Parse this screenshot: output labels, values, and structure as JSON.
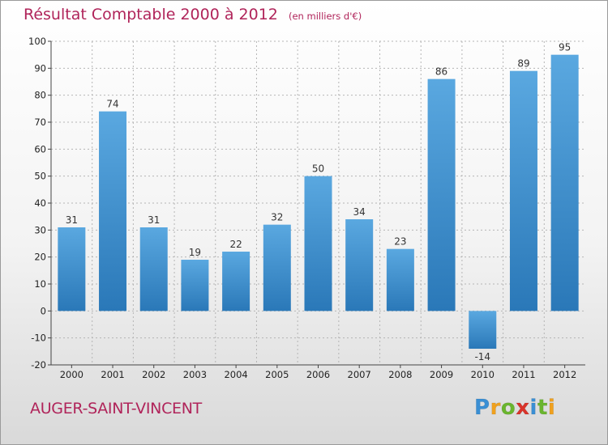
{
  "header": {
    "title": "Résultat Comptable 2000 à 2012",
    "unit": "(en milliers d'€)"
  },
  "footer": {
    "commune": "AUGER-SAINT-VINCENT"
  },
  "logo": {
    "text": "Proxiti",
    "letters": [
      {
        "ch": "P",
        "color": "#3a8fd4"
      },
      {
        "ch": "r",
        "color": "#f0a11e"
      },
      {
        "ch": "o",
        "color": "#6ab52e"
      },
      {
        "ch": "x",
        "color": "#d9342b"
      },
      {
        "ch": "i",
        "color": "#3a8fd4"
      },
      {
        "ch": "t",
        "color": "#6ab52e"
      },
      {
        "ch": "i",
        "color": "#f0a11e"
      }
    ]
  },
  "colors": {
    "title": "#b0245a",
    "bar_top": "#5aa8e0",
    "bar_bottom": "#2a78b8",
    "grid": "#b5b5b5"
  },
  "chart_data": {
    "type": "bar",
    "title": "Résultat Comptable 2000 à 2012",
    "unit": "(en milliers d'€)",
    "categories": [
      "2000",
      "2001",
      "2002",
      "2003",
      "2004",
      "2005",
      "2006",
      "2007",
      "2008",
      "2009",
      "2010",
      "2011",
      "2012"
    ],
    "values": [
      31,
      74,
      31,
      19,
      22,
      32,
      50,
      34,
      23,
      86,
      -14,
      89,
      95
    ],
    "data_labels": [
      "31",
      "74",
      "31",
      "19",
      "22",
      "32",
      "50",
      "34",
      "23",
      "86",
      "-14",
      "89",
      "95"
    ],
    "ylim": [
      -20,
      100
    ],
    "yticks": [
      -20,
      -10,
      0,
      10,
      20,
      30,
      40,
      50,
      60,
      70,
      80,
      90,
      100
    ],
    "ytick_labels": [
      "-20",
      "-10",
      "0",
      "10",
      "20",
      "30",
      "40",
      "50",
      "60",
      "70",
      "80",
      "90",
      "100"
    ],
    "grid": true,
    "legend": "none"
  }
}
